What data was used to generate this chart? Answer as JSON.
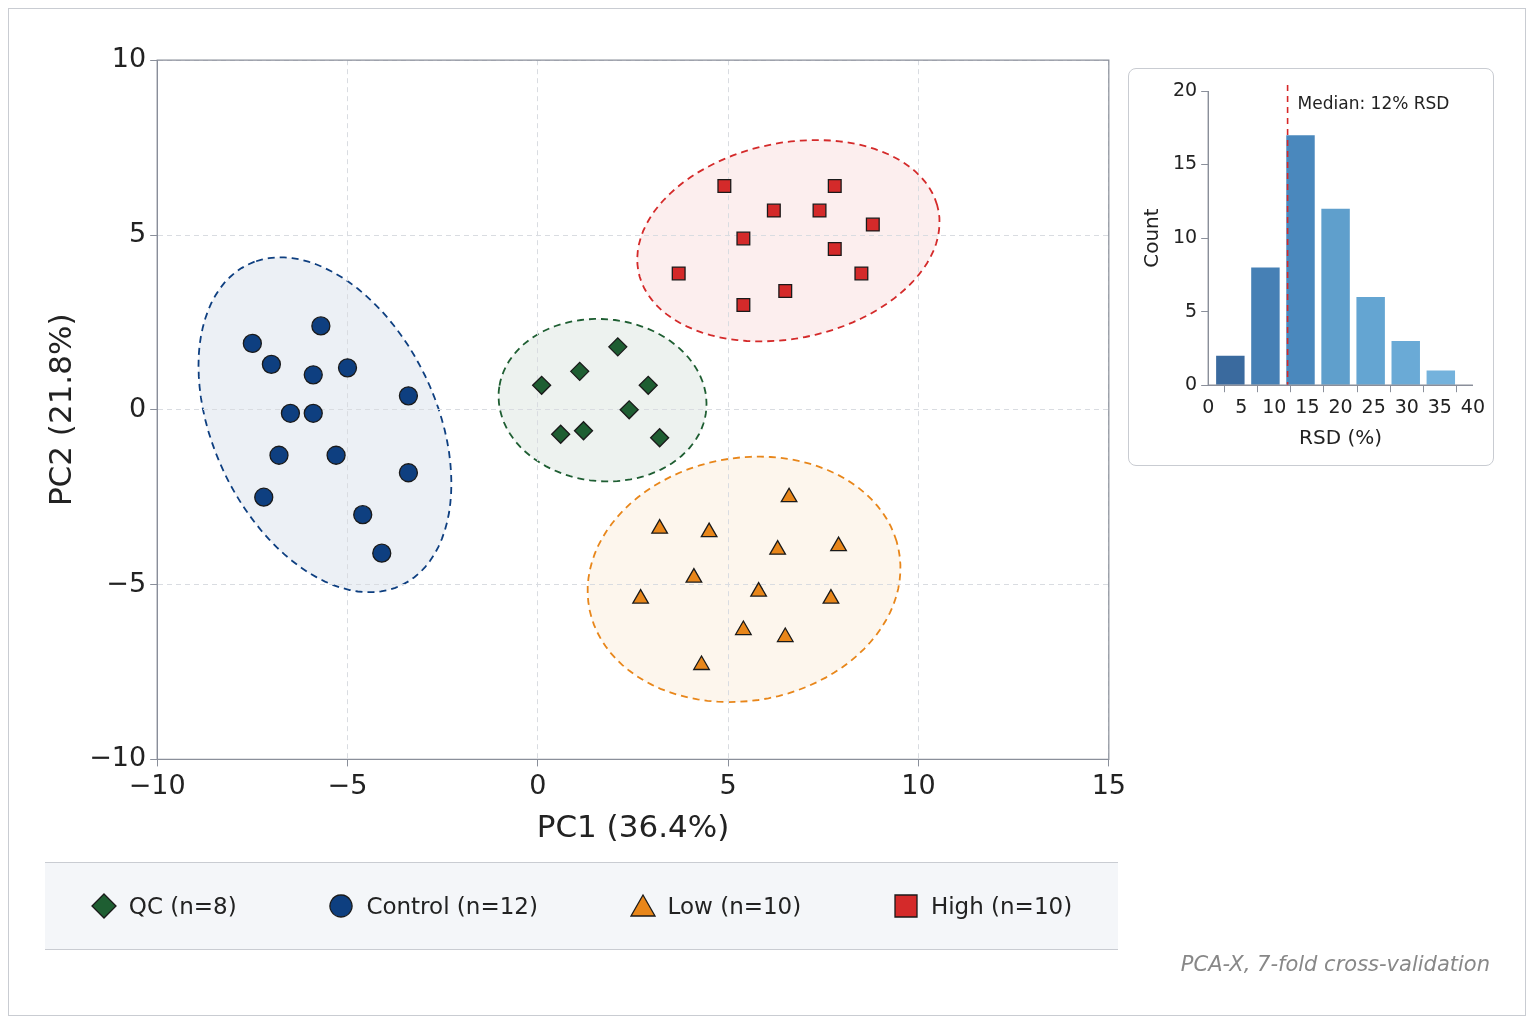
{
  "chart_data": [
    {
      "type": "scatter",
      "xlabel": "PC1 (36.4%)",
      "ylabel": "PC2 (21.8%)",
      "xlim": [
        -10,
        15
      ],
      "xticks": [
        -10,
        -5,
        0,
        5,
        10,
        15
      ],
      "ylim": [
        -10,
        10
      ],
      "yticks": [
        -10,
        -5,
        0,
        5,
        10
      ],
      "grid": true,
      "legend": "bottom",
      "annotations": [
        "PCA-X, 7-fold cross-validation"
      ],
      "series": [
        {
          "name": "QC (n=8)",
          "color": "#1e5e32",
          "marker": "diamond",
          "x": [
            2.1,
            1.1,
            0.1,
            2.9,
            2.4,
            0.6,
            1.2,
            3.2
          ],
          "values": [
            1.8,
            1.1,
            0.7,
            0.7,
            0.0,
            -0.7,
            -0.6,
            -0.8
          ]
        },
        {
          "name": "Control (n=12)",
          "color": "#0e3f80",
          "marker": "circle",
          "x": [
            -5.7,
            -7.5,
            -7.0,
            -5.9,
            -5.0,
            -3.4,
            -6.5,
            -5.9,
            -6.8,
            -5.3,
            -3.4,
            -7.2,
            -4.6,
            -4.1
          ],
          "values": [
            2.4,
            1.9,
            1.3,
            1.0,
            1.2,
            0.4,
            -0.1,
            -0.1,
            -1.3,
            -1.3,
            -1.8,
            -2.5,
            -3.0,
            -4.1
          ]
        },
        {
          "name": "Low (n=10)",
          "color": "#e8861a",
          "marker": "triangle",
          "x": [
            6.6,
            3.2,
            4.5,
            6.3,
            7.9,
            4.1,
            2.7,
            5.8,
            7.7,
            5.4,
            6.5,
            4.3
          ],
          "values": [
            -2.5,
            -3.4,
            -3.5,
            -4.0,
            -3.9,
            -4.8,
            -5.4,
            -5.2,
            -5.4,
            -6.3,
            -6.5,
            -7.3
          ]
        },
        {
          "name": "High (n=10)",
          "color": "#d42a2a",
          "marker": "square",
          "x": [
            4.9,
            7.8,
            6.2,
            7.4,
            8.8,
            5.4,
            7.8,
            3.7,
            8.5,
            6.5,
            5.4
          ],
          "values": [
            6.4,
            6.4,
            5.7,
            5.7,
            5.3,
            4.9,
            4.6,
            3.9,
            3.9,
            3.4,
            3.0
          ]
        }
      ]
    },
    {
      "type": "histogram",
      "xlabel": "RSD (%)",
      "ylabel": "Count",
      "xlim": [
        0,
        40
      ],
      "xticks": [
        0,
        5,
        10,
        15,
        20,
        25,
        30,
        35,
        40
      ],
      "ylim": [
        0,
        20
      ],
      "yticks": [
        0,
        5,
        10,
        15,
        20
      ],
      "bins": [
        0.7,
        6.0,
        11.3,
        16.6,
        21.9,
        27.2,
        32.5,
        37.8
      ],
      "values": [
        2,
        8,
        17,
        12,
        6,
        3,
        1
      ],
      "colors": [
        "#3a6a9e",
        "#4680b5",
        "#4a88bd",
        "#5f9fcc",
        "#64a5d2",
        "#6aaad6",
        "#74b2dc"
      ],
      "ref_lines": [
        {
          "axis": "x",
          "value": 12,
          "label": "Median: 12% RSD",
          "color": "#d62728",
          "line_style": "dashed"
        }
      ]
    }
  ]
}
